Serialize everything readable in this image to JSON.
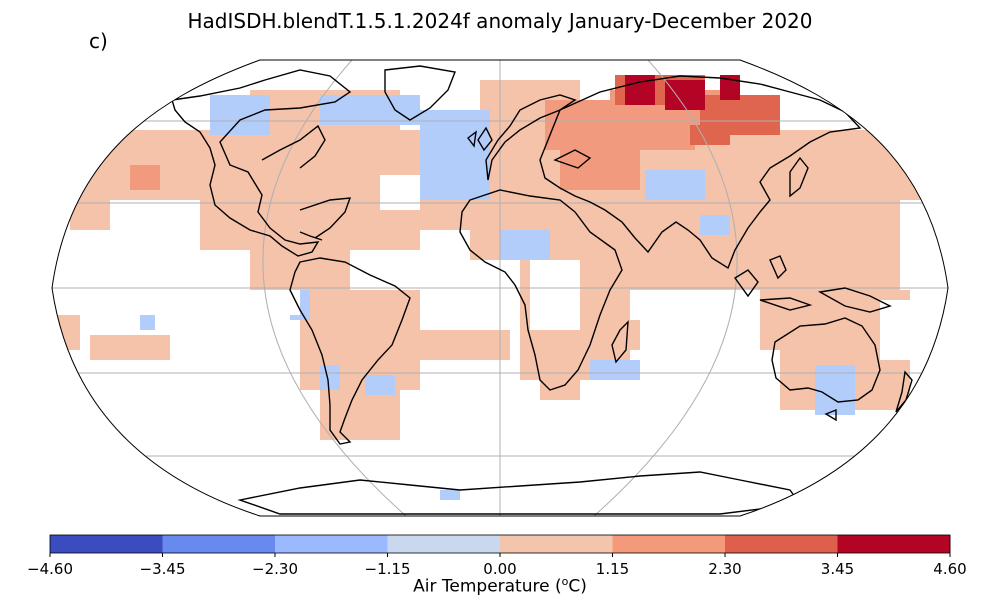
{
  "title": "HadISDH.blendT.1.5.1.2024f anomaly January-December 2020",
  "panel_letter": "c)",
  "colorbar": {
    "label_prefix": "Air Temperature (",
    "label_sup": "o",
    "label_suffix": "C)",
    "ticks": [
      "−4.60",
      "−3.45",
      "−2.30",
      "−1.15",
      "0.00",
      "1.15",
      "2.30",
      "3.45",
      "4.60"
    ],
    "colors": [
      "#3a4cc0",
      "#6889ee",
      "#9ab9ff",
      "#c9d8ef",
      "#f4c5ad",
      "#f49a7b",
      "#de604c",
      "#b40426"
    ]
  },
  "map": {
    "projection": "Robinson",
    "legend_levels": [
      -4.6,
      -3.45,
      -2.3,
      -1.15,
      0,
      1.15,
      2.3,
      3.45,
      4.6
    ],
    "mapped_colors": {
      "warm_light": "#f5c2aa",
      "warm_mid": "#f19a7d",
      "warm_strong": "#e0654f",
      "warm_max": "#b40426",
      "cool_light": "#b3cdfa"
    }
  }
}
